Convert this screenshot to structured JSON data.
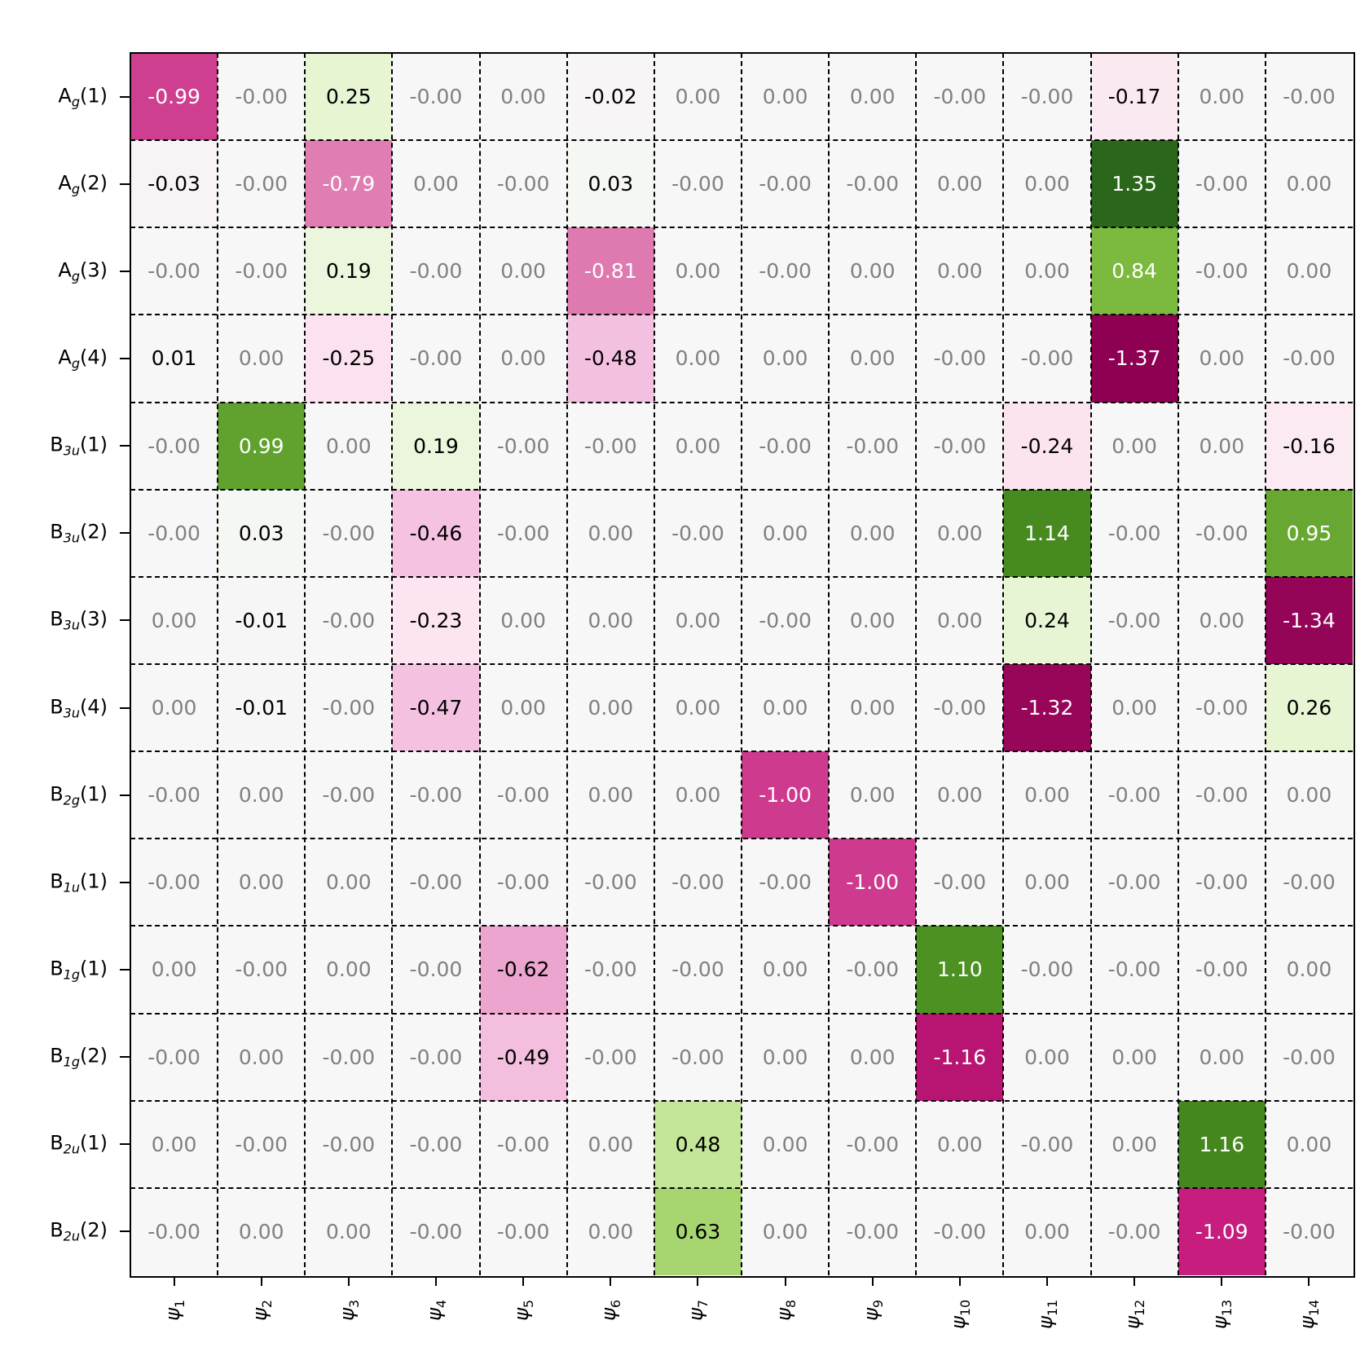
{
  "chart_data": {
    "type": "heatmap",
    "title": "",
    "xlabel": "",
    "ylabel": "",
    "colormap": "PiYG (pink negative, green positive)",
    "color_range": [
      -1.37,
      1.37
    ],
    "grid": "dashed black lines between cells",
    "x_categories": [
      {
        "base": "ψ",
        "sub": "1"
      },
      {
        "base": "ψ",
        "sub": "2"
      },
      {
        "base": "ψ",
        "sub": "3"
      },
      {
        "base": "ψ",
        "sub": "4"
      },
      {
        "base": "ψ",
        "sub": "5"
      },
      {
        "base": "ψ",
        "sub": "6"
      },
      {
        "base": "ψ",
        "sub": "7"
      },
      {
        "base": "ψ",
        "sub": "8"
      },
      {
        "base": "ψ",
        "sub": "9"
      },
      {
        "base": "ψ",
        "sub": "10"
      },
      {
        "base": "ψ",
        "sub": "11"
      },
      {
        "base": "ψ",
        "sub": "12"
      },
      {
        "base": "ψ",
        "sub": "13"
      },
      {
        "base": "ψ",
        "sub": "14"
      }
    ],
    "y_categories": [
      {
        "base": "A",
        "sub": "g",
        "idx": "(1)"
      },
      {
        "base": "A",
        "sub": "g",
        "idx": "(2)"
      },
      {
        "base": "A",
        "sub": "g",
        "idx": "(3)"
      },
      {
        "base": "A",
        "sub": "g",
        "idx": "(4)"
      },
      {
        "base": "B",
        "sub": "3u",
        "idx": "(1)"
      },
      {
        "base": "B",
        "sub": "3u",
        "idx": "(2)"
      },
      {
        "base": "B",
        "sub": "3u",
        "idx": "(3)"
      },
      {
        "base": "B",
        "sub": "3u",
        "idx": "(4)"
      },
      {
        "base": "B",
        "sub": "2g",
        "idx": "(1)"
      },
      {
        "base": "B",
        "sub": "1u",
        "idx": "(1)"
      },
      {
        "base": "B",
        "sub": "1g",
        "idx": "(1)"
      },
      {
        "base": "B",
        "sub": "1g",
        "idx": "(2)"
      },
      {
        "base": "B",
        "sub": "2u",
        "idx": "(1)"
      },
      {
        "base": "B",
        "sub": "2u",
        "idx": "(2)"
      }
    ],
    "cell_labels": [
      [
        "-0.99",
        "-0.00",
        "0.25",
        "-0.00",
        "0.00",
        "-0.02",
        "0.00",
        "0.00",
        "0.00",
        "-0.00",
        "-0.00",
        "-0.17",
        "0.00",
        "-0.00"
      ],
      [
        "-0.03",
        "-0.00",
        "-0.79",
        "0.00",
        "-0.00",
        "0.03",
        "-0.00",
        "-0.00",
        "-0.00",
        "0.00",
        "0.00",
        "1.35",
        "-0.00",
        "0.00"
      ],
      [
        "-0.00",
        "-0.00",
        "0.19",
        "-0.00",
        "0.00",
        "-0.81",
        "0.00",
        "-0.00",
        "0.00",
        "0.00",
        "0.00",
        "0.84",
        "-0.00",
        "0.00"
      ],
      [
        "0.01",
        "0.00",
        "-0.25",
        "-0.00",
        "0.00",
        "-0.48",
        "0.00",
        "0.00",
        "0.00",
        "-0.00",
        "-0.00",
        "-1.37",
        "0.00",
        "-0.00"
      ],
      [
        "-0.00",
        "0.99",
        "0.00",
        "0.19",
        "-0.00",
        "-0.00",
        "0.00",
        "-0.00",
        "-0.00",
        "-0.00",
        "-0.24",
        "0.00",
        "0.00",
        "-0.16"
      ],
      [
        "-0.00",
        "0.03",
        "-0.00",
        "-0.46",
        "-0.00",
        "0.00",
        "-0.00",
        "0.00",
        "0.00",
        "0.00",
        "1.14",
        "-0.00",
        "-0.00",
        "0.95"
      ],
      [
        "0.00",
        "-0.01",
        "-0.00",
        "-0.23",
        "0.00",
        "0.00",
        "0.00",
        "-0.00",
        "0.00",
        "0.00",
        "0.24",
        "-0.00",
        "0.00",
        "-1.34"
      ],
      [
        "0.00",
        "-0.01",
        "-0.00",
        "-0.47",
        "0.00",
        "0.00",
        "0.00",
        "0.00",
        "0.00",
        "-0.00",
        "-1.32",
        "0.00",
        "-0.00",
        "0.26"
      ],
      [
        "-0.00",
        "0.00",
        "-0.00",
        "-0.00",
        "-0.00",
        "0.00",
        "0.00",
        "-1.00",
        "0.00",
        "0.00",
        "0.00",
        "-0.00",
        "-0.00",
        "0.00"
      ],
      [
        "-0.00",
        "0.00",
        "0.00",
        "-0.00",
        "-0.00",
        "-0.00",
        "-0.00",
        "-0.00",
        "-1.00",
        "-0.00",
        "0.00",
        "-0.00",
        "-0.00",
        "-0.00"
      ],
      [
        "0.00",
        "-0.00",
        "0.00",
        "-0.00",
        "-0.62",
        "-0.00",
        "-0.00",
        "0.00",
        "-0.00",
        "1.10",
        "-0.00",
        "-0.00",
        "-0.00",
        "0.00"
      ],
      [
        "-0.00",
        "0.00",
        "-0.00",
        "-0.00",
        "-0.49",
        "-0.00",
        "-0.00",
        "0.00",
        "0.00",
        "-1.16",
        "0.00",
        "0.00",
        "0.00",
        "-0.00"
      ],
      [
        "0.00",
        "-0.00",
        "-0.00",
        "-0.00",
        "-0.00",
        "0.00",
        "0.48",
        "0.00",
        "-0.00",
        "0.00",
        "-0.00",
        "0.00",
        "1.16",
        "0.00"
      ],
      [
        "-0.00",
        "0.00",
        "0.00",
        "-0.00",
        "-0.00",
        "0.00",
        "0.63",
        "0.00",
        "-0.00",
        "-0.00",
        "0.00",
        "-0.00",
        "-1.09",
        "-0.00"
      ]
    ],
    "values": [
      [
        -0.99,
        0,
        0.25,
        0,
        0,
        -0.02,
        0,
        0,
        0,
        0,
        0,
        -0.17,
        0,
        0
      ],
      [
        -0.03,
        0,
        -0.79,
        0,
        0,
        0.03,
        0,
        0,
        0,
        0,
        0,
        1.35,
        0,
        0
      ],
      [
        0,
        0,
        0.19,
        0,
        0,
        -0.81,
        0,
        0,
        0,
        0,
        0,
        0.84,
        0,
        0
      ],
      [
        0.01,
        0,
        -0.25,
        0,
        0,
        -0.48,
        0,
        0,
        0,
        0,
        0,
        -1.37,
        0,
        0
      ],
      [
        0,
        0.99,
        0,
        0.19,
        0,
        0,
        0,
        0,
        0,
        0,
        -0.24,
        0,
        0,
        -0.16
      ],
      [
        0,
        0.03,
        0,
        -0.46,
        0,
        0,
        0,
        0,
        0,
        0,
        1.14,
        0,
        0,
        0.95
      ],
      [
        0,
        -0.01,
        0,
        -0.23,
        0,
        0,
        0,
        0,
        0,
        0,
        0.24,
        0,
        0,
        -1.34
      ],
      [
        0,
        -0.01,
        0,
        -0.47,
        0,
        0,
        0,
        0,
        0,
        0,
        -1.32,
        0,
        0,
        0.26
      ],
      [
        0,
        0,
        0,
        0,
        0,
        0,
        0,
        -1.0,
        0,
        0,
        0,
        0,
        0,
        0
      ],
      [
        0,
        0,
        0,
        0,
        0,
        0,
        0,
        0,
        -1.0,
        0,
        0,
        0,
        0,
        0
      ],
      [
        0,
        0,
        0,
        0,
        -0.62,
        0,
        0,
        0,
        0,
        1.1,
        0,
        0,
        0,
        0
      ],
      [
        0,
        0,
        0,
        0,
        -0.49,
        0,
        0,
        0,
        0,
        -1.16,
        0,
        0,
        0,
        0
      ],
      [
        0,
        0,
        0,
        0,
        0,
        0,
        0.48,
        0,
        0,
        0,
        0,
        0,
        1.16,
        0
      ],
      [
        0,
        0,
        0,
        0,
        0,
        0,
        0.63,
        0,
        0,
        0,
        0,
        0,
        -1.09,
        0
      ]
    ]
  },
  "colors": {
    "neutral": "#f7f7f7",
    "neg_strong": "#8e0152",
    "neg_mid": "#c51b7d",
    "neg_light": "#de77ae",
    "neg_pale": "#fde0ef",
    "pos_strong": "#276419",
    "pos_mid": "#4d9221",
    "pos_light": "#7fbc41",
    "pos_pale": "#e6f5d0",
    "text_zero": "#808080",
    "text_dark": "#000000",
    "text_light": "#ffffff"
  }
}
